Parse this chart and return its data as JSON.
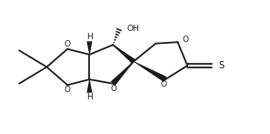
{
  "bg_color": "#ffffff",
  "line_color": "#1a1a1a",
  "line_width": 1.3,
  "text_color": "#1a1a1a",
  "fig_width": 2.97,
  "fig_height": 1.47,
  "dpi": 100,
  "xlim": [
    0,
    9.5
  ],
  "ylim": [
    0,
    4.8
  ]
}
